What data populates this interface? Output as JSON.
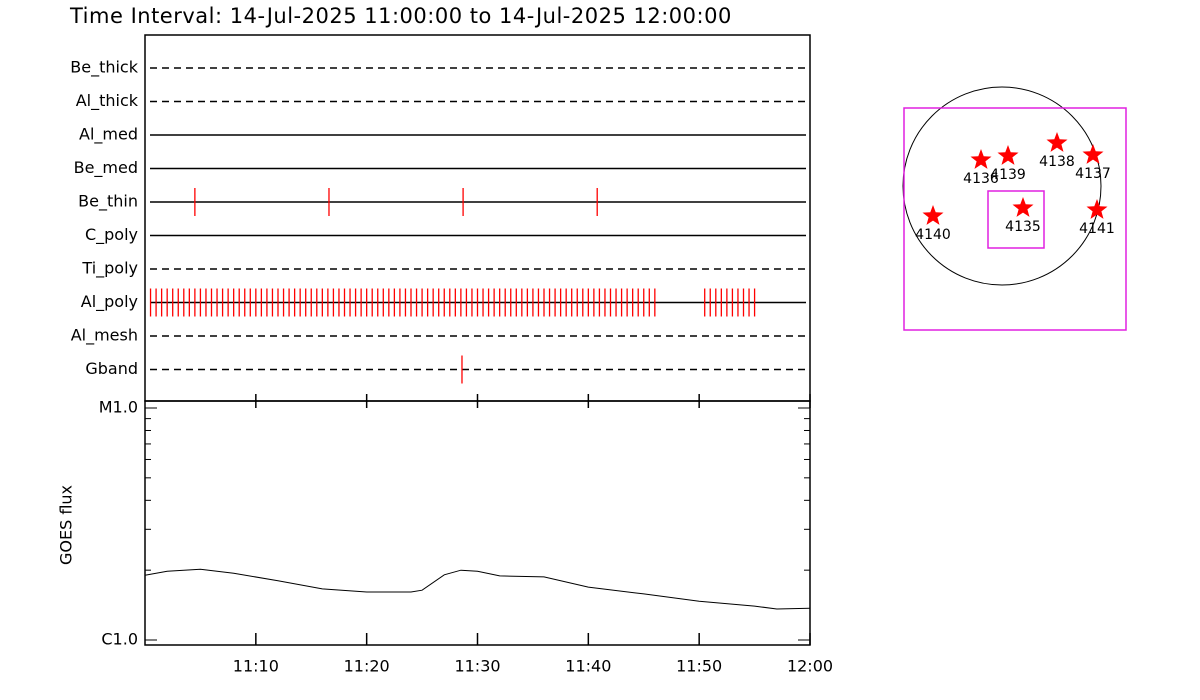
{
  "chart_data": [
    {
      "type": "timeline",
      "title": "Time Interval: 14-Jul-2025 11:00:00 to 14-Jul-2025 12:00:00",
      "categories": [
        "Be_thick",
        "Al_thick",
        "Al_med",
        "Be_med",
        "Be_thin",
        "C_poly",
        "Ti_poly",
        "Al_poly",
        "Al_mesh",
        "Gband"
      ],
      "line_styles": [
        "dashed",
        "dashed",
        "solid",
        "solid",
        "solid",
        "solid",
        "dashed",
        "solid",
        "dashed",
        "dashed"
      ],
      "events": [
        [],
        [],
        [],
        [],
        [
          4.5,
          16.6,
          28.7,
          40.8
        ],
        [],
        [],
        [
          0.5,
          1,
          1.5,
          2,
          2.5,
          3,
          3.5,
          4,
          4.5,
          5,
          5.5,
          6,
          6.5,
          7,
          7.5,
          8,
          8.5,
          9,
          9.5,
          10,
          10.5,
          11,
          11.5,
          12,
          12.5,
          13,
          13.5,
          14,
          14.5,
          15,
          15.5,
          16,
          16.5,
          17,
          17.5,
          18,
          18.5,
          19,
          19.5,
          20,
          20.5,
          21,
          21.5,
          22,
          22.5,
          23,
          23.5,
          24,
          24.5,
          25,
          25.5,
          26,
          26.5,
          27,
          27.5,
          28,
          28.5,
          29,
          29.5,
          30,
          30.5,
          31,
          31.5,
          32,
          32.5,
          33,
          33.5,
          34,
          34.5,
          35,
          35.5,
          36,
          36.5,
          37,
          37.5,
          38,
          38.5,
          39,
          39.5,
          40,
          40.5,
          41,
          41.5,
          42,
          42.5,
          43,
          43.5,
          44,
          44.5,
          45,
          45.5,
          46,
          50.5,
          51,
          51.5,
          52,
          52.5,
          53,
          53.5,
          54,
          54.5,
          55
        ],
        [],
        [
          28.6
        ]
      ],
      "color": "#ff0000",
      "xlim": [
        0,
        60
      ]
    },
    {
      "type": "line",
      "y_label": "GOES flux",
      "x": [
        0,
        2,
        5,
        8,
        12,
        16,
        20,
        24,
        25,
        27,
        28.5,
        30,
        32,
        36,
        40,
        45,
        50,
        55,
        57,
        60
      ],
      "values": [
        1.9e-06,
        1.98e-06,
        2.02e-06,
        1.94e-06,
        1.8e-06,
        1.66e-06,
        1.61e-06,
        1.61e-06,
        1.64e-06,
        1.91e-06,
        2e-06,
        1.98e-06,
        1.89e-06,
        1.87e-06,
        1.69e-06,
        1.58e-06,
        1.47e-06,
        1.4e-06,
        1.36e-06,
        1.37e-06
      ],
      "color": "#000000",
      "log_y": true,
      "xlim": [
        0,
        60
      ],
      "xticks": [
        {
          "value": 10,
          "label": "11:10"
        },
        {
          "value": 20,
          "label": "11:20"
        },
        {
          "value": 30,
          "label": "11:30"
        },
        {
          "value": 40,
          "label": "11:40"
        },
        {
          "value": 50,
          "label": "11:50"
        },
        {
          "value": 60,
          "label": "12:00"
        }
      ],
      "ylim": [
        1e-06,
        1e-05
      ],
      "yticks": [
        {
          "value": 1e-06,
          "label": "C1.0"
        },
        {
          "value": 1e-05,
          "label": "M1.0"
        }
      ],
      "minor_yticks": [
        2e-06,
        3e-06,
        4e-06,
        5e-06,
        6e-06,
        7e-06,
        8e-06,
        9e-06
      ]
    }
  ],
  "map": {
    "regions": [
      "4136",
      "4139",
      "4138",
      "4137",
      "4135",
      "4141",
      "4140"
    ],
    "color": "#ff0000",
    "box_color": "#e020e0"
  }
}
